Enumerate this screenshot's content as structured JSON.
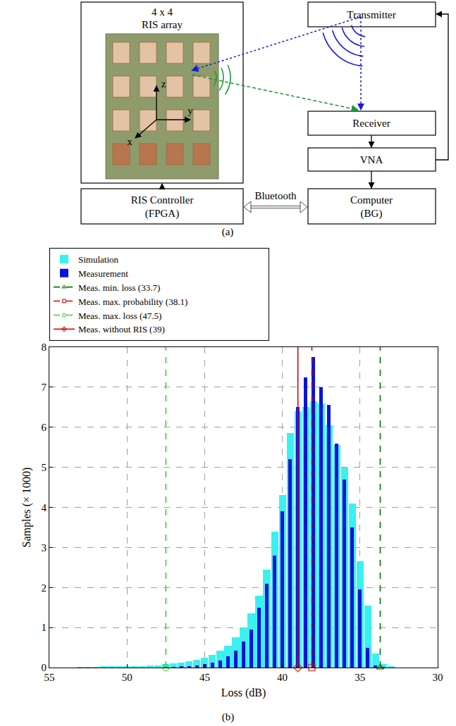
{
  "diagram": {
    "ris_array": {
      "title": [
        "4 x 4",
        "RIS array"
      ],
      "axes": [
        "z",
        "y",
        "x"
      ]
    },
    "transmitter": "Transmitter",
    "receiver": "Receiver",
    "vna": "VNA",
    "computer": [
      "Computer",
      "(BG)"
    ],
    "controller": [
      "RIS Controller",
      "(FPGA)"
    ],
    "link": "Bluetooth",
    "caption": "(a)"
  },
  "chart_data": {
    "type": "bar",
    "caption": "(b)",
    "x_label": "Loss (dB)",
    "y_label": "Samples (× 1000)",
    "xlim": [
      55,
      30
    ],
    "xticks": [
      55,
      50,
      45,
      40,
      35,
      30
    ],
    "ylim": [
      0,
      8
    ],
    "yticks": [
      0,
      1,
      2,
      3,
      4,
      5,
      6,
      7,
      8
    ],
    "grid": true,
    "legend": "top",
    "series": [
      {
        "name": "Simulation",
        "type": "bar",
        "color": "#3cf0f0",
        "x": [
          53,
          52.5,
          52,
          51.5,
          51,
          50.5,
          50,
          49.5,
          49,
          48.5,
          48,
          47.5,
          47,
          46.5,
          46,
          45.5,
          45,
          44.5,
          44,
          43.5,
          43,
          42.5,
          42,
          41.5,
          41,
          40.5,
          40,
          39.5,
          39,
          38.5,
          38,
          37.5,
          37,
          36.5,
          36,
          35.5,
          35,
          34.5,
          34,
          33.5,
          33
        ],
        "values": [
          0.01,
          0.01,
          0.01,
          0.02,
          0.02,
          0.02,
          0.03,
          0.03,
          0.04,
          0.05,
          0.06,
          0.08,
          0.1,
          0.12,
          0.15,
          0.2,
          0.25,
          0.32,
          0.42,
          0.55,
          0.75,
          1.0,
          1.35,
          1.8,
          2.45,
          3.4,
          4.3,
          5.85,
          6.4,
          6.5,
          6.65,
          6.6,
          6.05,
          5.55,
          5.0,
          4.1,
          2.65,
          1.55,
          0.35,
          0.08,
          0.02
        ]
      },
      {
        "name": "Measurement",
        "type": "bar",
        "color": "#0a14d8",
        "x": [
          47.5,
          47,
          46.5,
          46,
          45.5,
          45,
          44.5,
          44,
          43.5,
          43,
          42.5,
          42,
          41.5,
          41,
          40.5,
          40,
          39.5,
          39,
          38.5,
          38,
          37.5,
          37,
          36.5,
          36,
          35.5,
          35,
          34.5,
          34,
          33.5
        ],
        "values": [
          0.005,
          0.01,
          0.02,
          0.03,
          0.05,
          0.08,
          0.12,
          0.18,
          0.28,
          0.42,
          0.65,
          0.95,
          1.5,
          2.1,
          2.8,
          3.9,
          5.2,
          6.5,
          7.25,
          7.75,
          7.0,
          6.55,
          5.6,
          4.7,
          3.5,
          1.95,
          0.5,
          0.06,
          0.01
        ]
      },
      {
        "name": "Meas. min. loss (33.7)",
        "type": "vline",
        "x": 33.7,
        "color": "#007a00",
        "line_style": "dash",
        "marker": "triangle"
      },
      {
        "name": "Meas. max. probability (38.1)",
        "type": "vline",
        "x": 38.1,
        "color": "#e00000",
        "line_style": "dash",
        "marker": "square"
      },
      {
        "name": "Meas. max. loss (47.5)",
        "type": "vline",
        "x": 47.5,
        "color": "#33d633",
        "line_style": "dash",
        "marker": "circle"
      },
      {
        "name": "Meas. without RIS (39)",
        "type": "vline",
        "x": 39,
        "color": "#e00000",
        "line_style": "solid",
        "marker": "diamond"
      }
    ]
  }
}
